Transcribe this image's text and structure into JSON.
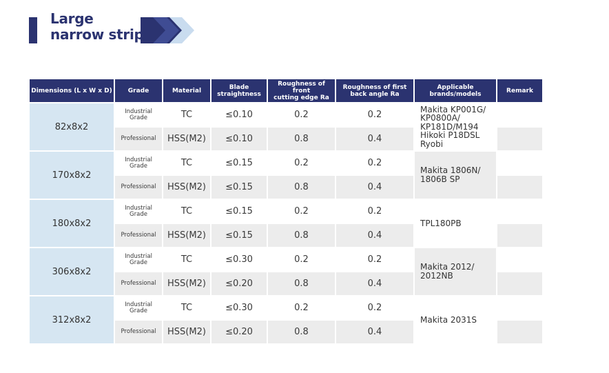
{
  "title": {
    "line1": "Large",
    "line2": "narrow strip"
  },
  "colors": {
    "header": "#2b3370",
    "dimension_cell": "#d6e6f2",
    "chevron_dark": "#2b3370",
    "chevron_light": "#c9dcef"
  },
  "table": {
    "headers": {
      "dimensions": "Dimensions (L x W x D)",
      "grade": "Grade",
      "material": "Material",
      "blade_line1": "Blade",
      "blade_line2": "straightness",
      "front_line1": "Roughness of front",
      "front_line2": "cutting edge Ra",
      "back_line1": "Roughness of first",
      "back_line2": "back angle Ra",
      "brands_line1": "Applicable",
      "brands_line2": "brands/models",
      "remark": "Remark"
    },
    "groups": [
      {
        "dimension": "82x8x2",
        "brands": [
          "Makita KP001G/",
          "KP0800A/",
          "KP181D/M194",
          "Hikoki P18DSL",
          "Ryobi"
        ],
        "rows": [
          {
            "grade_line1": "Industrial",
            "grade_line2": "Grade",
            "material": "TC",
            "straightness": "≤0.10",
            "front_ra": "0.2",
            "back_ra": "0.2",
            "remark": ""
          },
          {
            "grade_line1": "Professional",
            "grade_line2": "",
            "material": "HSS(M2)",
            "straightness": "≤0.10",
            "front_ra": "0.8",
            "back_ra": "0.4",
            "remark": ""
          }
        ]
      },
      {
        "dimension": "170x8x2",
        "brands": [
          "Makita 1806N/",
          "1806B SP"
        ],
        "rows": [
          {
            "grade_line1": "Industrial",
            "grade_line2": "Grade",
            "material": "TC",
            "straightness": "≤0.15",
            "front_ra": "0.2",
            "back_ra": "0.2",
            "remark": ""
          },
          {
            "grade_line1": "Professional",
            "grade_line2": "",
            "material": "HSS(M2)",
            "straightness": "≤0.15",
            "front_ra": "0.8",
            "back_ra": "0.4",
            "remark": ""
          }
        ]
      },
      {
        "dimension": "180x8x2",
        "brands": [
          "TPL180PB"
        ],
        "rows": [
          {
            "grade_line1": "Industrial",
            "grade_line2": "Grade",
            "material": "TC",
            "straightness": "≤0.15",
            "front_ra": "0.2",
            "back_ra": "0.2",
            "remark": ""
          },
          {
            "grade_line1": "Professional",
            "grade_line2": "",
            "material": "HSS(M2)",
            "straightness": "≤0.15",
            "front_ra": "0.8",
            "back_ra": "0.4",
            "remark": ""
          }
        ]
      },
      {
        "dimension": "306x8x2",
        "brands": [
          "Makita 2012/",
          "2012NB"
        ],
        "rows": [
          {
            "grade_line1": "Industrial",
            "grade_line2": "Grade",
            "material": "TC",
            "straightness": "≤0.30",
            "front_ra": "0.2",
            "back_ra": "0.2",
            "remark": ""
          },
          {
            "grade_line1": "Professional",
            "grade_line2": "",
            "material": "HSS(M2)",
            "straightness": "≤0.20",
            "front_ra": "0.8",
            "back_ra": "0.4",
            "remark": ""
          }
        ]
      },
      {
        "dimension": "312x8x2",
        "brands": [
          "Makita 2031S"
        ],
        "rows": [
          {
            "grade_line1": "Industrial",
            "grade_line2": "Grade",
            "material": "TC",
            "straightness": "≤0.30",
            "front_ra": "0.2",
            "back_ra": "0.2",
            "remark": ""
          },
          {
            "grade_line1": "Professional",
            "grade_line2": "",
            "material": "HSS(M2)",
            "straightness": "≤0.20",
            "front_ra": "0.8",
            "back_ra": "0.4",
            "remark": ""
          }
        ]
      }
    ]
  }
}
